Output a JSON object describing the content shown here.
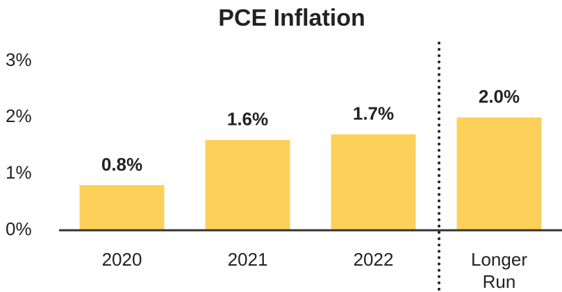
{
  "chart_data": {
    "type": "bar",
    "title": "PCE Inflation",
    "categories": [
      "2020",
      "2021",
      "2022",
      "Longer Run"
    ],
    "values": [
      0.8,
      1.6,
      1.7,
      2.0
    ],
    "value_labels": [
      "0.8%",
      "1.6%",
      "1.7%",
      "2.0%"
    ],
    "color": "#fdd05a",
    "ylim": [
      0,
      3
    ],
    "yticks": [
      {
        "value": 0,
        "label": "0%"
      },
      {
        "value": 1,
        "label": "1%"
      },
      {
        "value": 2,
        "label": "2%"
      },
      {
        "value": 3,
        "label": "3%"
      }
    ],
    "grid": false
  }
}
